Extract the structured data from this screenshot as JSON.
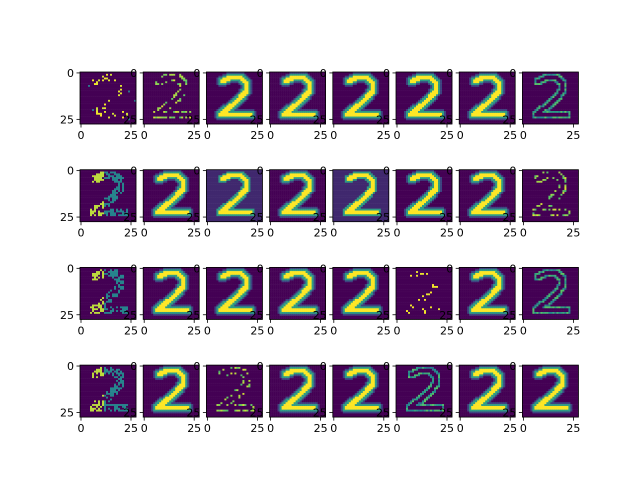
{
  "chart_data": {
    "type": "heatmap",
    "title": "",
    "rows": 4,
    "cols": 8,
    "colormap": "viridis",
    "x_ticks": [
      "0",
      "25"
    ],
    "y_ticks": [
      "0",
      "25"
    ],
    "xlim": [
      0,
      27
    ],
    "ylim": [
      27,
      0
    ],
    "panels": [
      {
        "style": "sparse-diag"
      },
      {
        "style": "faint-edge"
      },
      {
        "style": "bright-full"
      },
      {
        "style": "bright-full"
      },
      {
        "style": "bright-full"
      },
      {
        "style": "bright-full"
      },
      {
        "style": "bright-full"
      },
      {
        "style": "outline-edge"
      },
      {
        "style": "edge-left"
      },
      {
        "style": "bright-full"
      },
      {
        "style": "bright-dark-bg"
      },
      {
        "style": "bright-full"
      },
      {
        "style": "bright-dark-bg"
      },
      {
        "style": "bright-full"
      },
      {
        "style": "bright-full"
      },
      {
        "style": "faint-edge"
      },
      {
        "style": "edge-left"
      },
      {
        "style": "bright-full"
      },
      {
        "style": "bright-full"
      },
      {
        "style": "bright-full"
      },
      {
        "style": "bright-full"
      },
      {
        "style": "sparse-dots"
      },
      {
        "style": "bright-full"
      },
      {
        "style": "outline-edge"
      },
      {
        "style": "edge-left"
      },
      {
        "style": "bright-full"
      },
      {
        "style": "faint-edge"
      },
      {
        "style": "bright-full"
      },
      {
        "style": "bright-full"
      },
      {
        "style": "outline-edge"
      },
      {
        "style": "bright-full"
      },
      {
        "style": "bright-full"
      }
    ]
  }
}
